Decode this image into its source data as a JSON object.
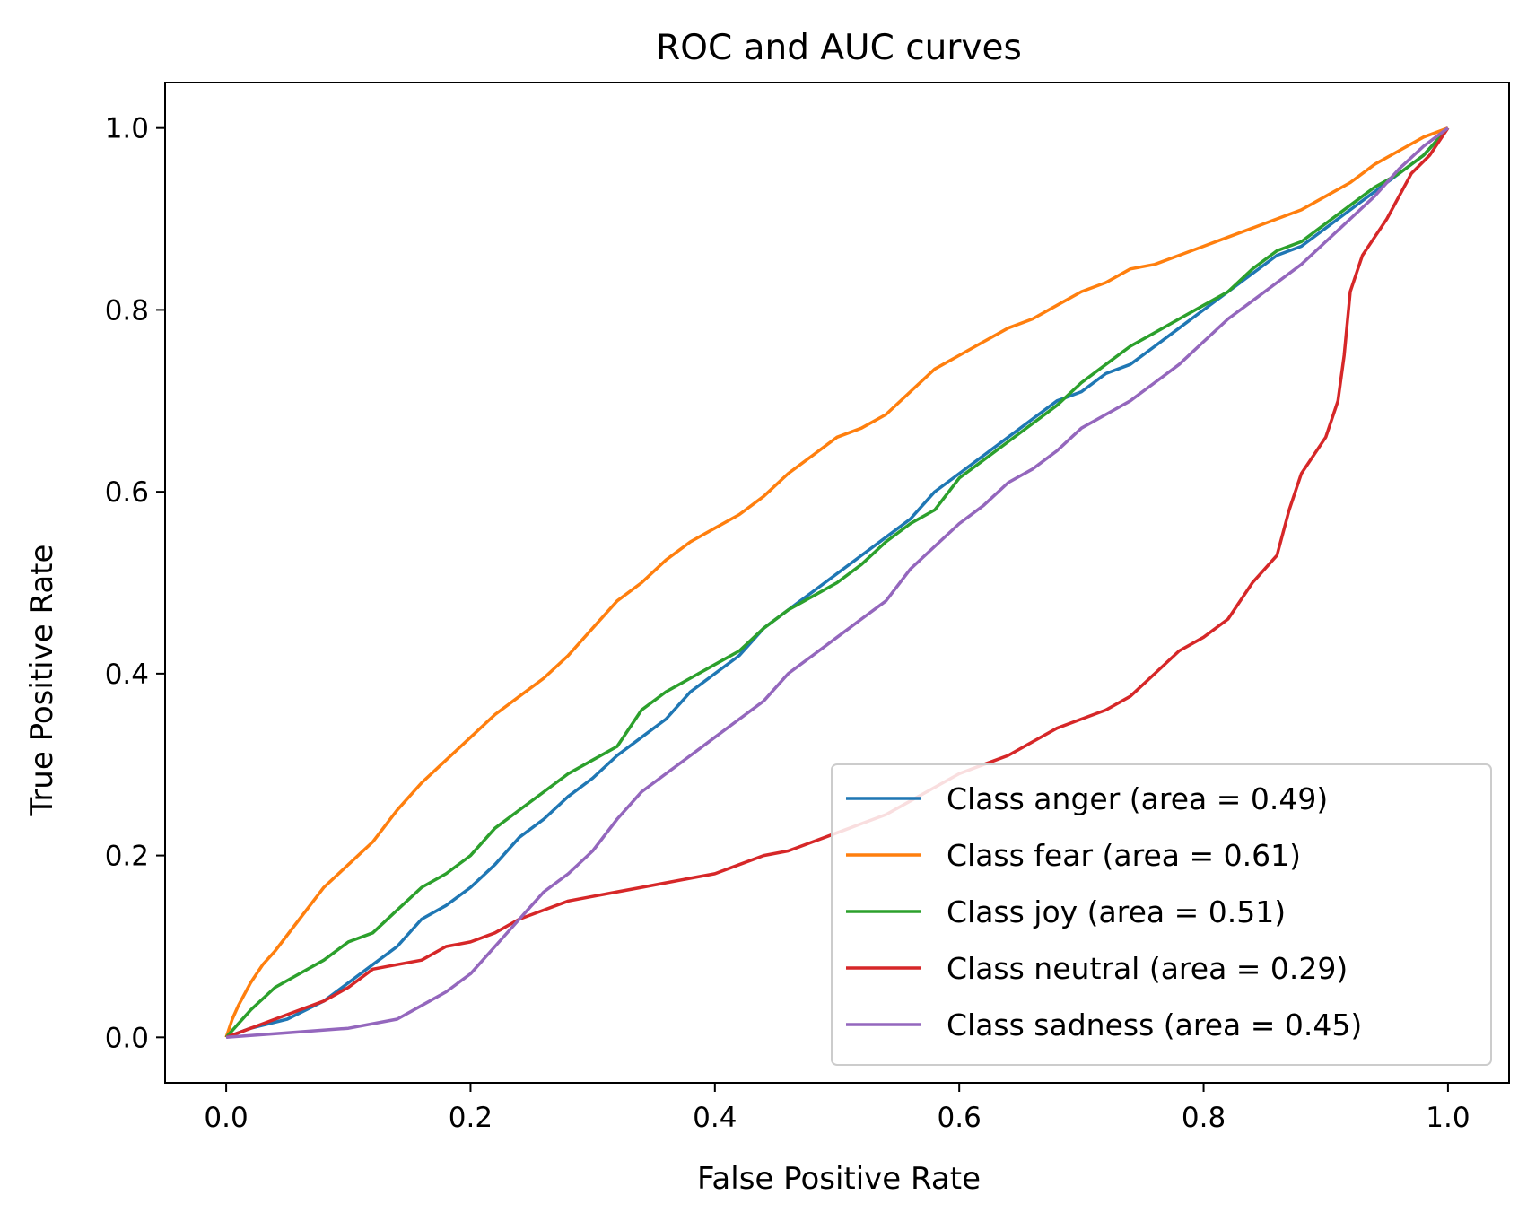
{
  "chart_data": {
    "type": "line",
    "title": "ROC and AUC curves",
    "xlabel": "False Positive Rate",
    "ylabel": "True Positive Rate",
    "xlim": [
      -0.05,
      1.05
    ],
    "ylim": [
      -0.05,
      1.05
    ],
    "x_ticks": [
      "0.0",
      "0.2",
      "0.4",
      "0.6",
      "0.8",
      "1.0"
    ],
    "y_ticks": [
      "0.0",
      "0.2",
      "0.4",
      "0.6",
      "0.8",
      "1.0"
    ],
    "grid": false,
    "legend_position": "lower-right",
    "series": [
      {
        "name": "Class anger (area = 0.49)",
        "color": "#1f77b4",
        "points": [
          [
            0,
            0
          ],
          [
            0.02,
            0.01
          ],
          [
            0.05,
            0.02
          ],
          [
            0.08,
            0.04
          ],
          [
            0.1,
            0.06
          ],
          [
            0.12,
            0.08
          ],
          [
            0.14,
            0.1
          ],
          [
            0.16,
            0.13
          ],
          [
            0.18,
            0.145
          ],
          [
            0.2,
            0.165
          ],
          [
            0.22,
            0.19
          ],
          [
            0.24,
            0.22
          ],
          [
            0.26,
            0.24
          ],
          [
            0.28,
            0.265
          ],
          [
            0.3,
            0.285
          ],
          [
            0.32,
            0.31
          ],
          [
            0.34,
            0.33
          ],
          [
            0.36,
            0.35
          ],
          [
            0.38,
            0.38
          ],
          [
            0.4,
            0.4
          ],
          [
            0.42,
            0.42
          ],
          [
            0.44,
            0.45
          ],
          [
            0.46,
            0.47
          ],
          [
            0.48,
            0.49
          ],
          [
            0.5,
            0.51
          ],
          [
            0.52,
            0.53
          ],
          [
            0.54,
            0.55
          ],
          [
            0.56,
            0.57
          ],
          [
            0.58,
            0.6
          ],
          [
            0.6,
            0.62
          ],
          [
            0.62,
            0.64
          ],
          [
            0.64,
            0.66
          ],
          [
            0.66,
            0.68
          ],
          [
            0.68,
            0.7
          ],
          [
            0.7,
            0.71
          ],
          [
            0.72,
            0.73
          ],
          [
            0.74,
            0.74
          ],
          [
            0.76,
            0.76
          ],
          [
            0.78,
            0.78
          ],
          [
            0.8,
            0.8
          ],
          [
            0.82,
            0.82
          ],
          [
            0.84,
            0.84
          ],
          [
            0.86,
            0.86
          ],
          [
            0.88,
            0.87
          ],
          [
            0.9,
            0.89
          ],
          [
            0.92,
            0.91
          ],
          [
            0.94,
            0.93
          ],
          [
            0.96,
            0.95
          ],
          [
            0.98,
            0.97
          ],
          [
            1,
            1
          ]
        ]
      },
      {
        "name": "Class fear (area = 0.61)",
        "color": "#ff7f0e",
        "points": [
          [
            0,
            0
          ],
          [
            0.005,
            0.02
          ],
          [
            0.01,
            0.035
          ],
          [
            0.02,
            0.06
          ],
          [
            0.03,
            0.08
          ],
          [
            0.04,
            0.095
          ],
          [
            0.06,
            0.13
          ],
          [
            0.08,
            0.165
          ],
          [
            0.1,
            0.19
          ],
          [
            0.12,
            0.215
          ],
          [
            0.14,
            0.25
          ],
          [
            0.16,
            0.28
          ],
          [
            0.18,
            0.305
          ],
          [
            0.2,
            0.33
          ],
          [
            0.22,
            0.355
          ],
          [
            0.24,
            0.375
          ],
          [
            0.26,
            0.395
          ],
          [
            0.28,
            0.42
          ],
          [
            0.3,
            0.45
          ],
          [
            0.32,
            0.48
          ],
          [
            0.34,
            0.5
          ],
          [
            0.36,
            0.525
          ],
          [
            0.38,
            0.545
          ],
          [
            0.4,
            0.56
          ],
          [
            0.42,
            0.575
          ],
          [
            0.44,
            0.595
          ],
          [
            0.46,
            0.62
          ],
          [
            0.48,
            0.64
          ],
          [
            0.5,
            0.66
          ],
          [
            0.52,
            0.67
          ],
          [
            0.54,
            0.685
          ],
          [
            0.56,
            0.71
          ],
          [
            0.58,
            0.735
          ],
          [
            0.6,
            0.75
          ],
          [
            0.62,
            0.765
          ],
          [
            0.64,
            0.78
          ],
          [
            0.66,
            0.79
          ],
          [
            0.68,
            0.805
          ],
          [
            0.7,
            0.82
          ],
          [
            0.72,
            0.83
          ],
          [
            0.74,
            0.845
          ],
          [
            0.76,
            0.85
          ],
          [
            0.78,
            0.86
          ],
          [
            0.8,
            0.87
          ],
          [
            0.82,
            0.88
          ],
          [
            0.84,
            0.89
          ],
          [
            0.86,
            0.9
          ],
          [
            0.88,
            0.91
          ],
          [
            0.9,
            0.925
          ],
          [
            0.92,
            0.94
          ],
          [
            0.94,
            0.96
          ],
          [
            0.96,
            0.975
          ],
          [
            0.98,
            0.99
          ],
          [
            1,
            1
          ]
        ]
      },
      {
        "name": "Class joy (area = 0.51)",
        "color": "#2ca02c",
        "points": [
          [
            0,
            0
          ],
          [
            0.01,
            0.015
          ],
          [
            0.02,
            0.03
          ],
          [
            0.04,
            0.055
          ],
          [
            0.06,
            0.07
          ],
          [
            0.08,
            0.085
          ],
          [
            0.1,
            0.105
          ],
          [
            0.12,
            0.115
          ],
          [
            0.14,
            0.14
          ],
          [
            0.16,
            0.165
          ],
          [
            0.18,
            0.18
          ],
          [
            0.2,
            0.2
          ],
          [
            0.22,
            0.23
          ],
          [
            0.24,
            0.25
          ],
          [
            0.26,
            0.27
          ],
          [
            0.28,
            0.29
          ],
          [
            0.3,
            0.305
          ],
          [
            0.32,
            0.32
          ],
          [
            0.34,
            0.36
          ],
          [
            0.36,
            0.38
          ],
          [
            0.38,
            0.395
          ],
          [
            0.4,
            0.41
          ],
          [
            0.42,
            0.425
          ],
          [
            0.44,
            0.45
          ],
          [
            0.46,
            0.47
          ],
          [
            0.48,
            0.485
          ],
          [
            0.5,
            0.5
          ],
          [
            0.52,
            0.52
          ],
          [
            0.54,
            0.545
          ],
          [
            0.56,
            0.565
          ],
          [
            0.58,
            0.58
          ],
          [
            0.6,
            0.615
          ],
          [
            0.62,
            0.635
          ],
          [
            0.64,
            0.655
          ],
          [
            0.66,
            0.675
          ],
          [
            0.68,
            0.695
          ],
          [
            0.7,
            0.72
          ],
          [
            0.72,
            0.74
          ],
          [
            0.74,
            0.76
          ],
          [
            0.76,
            0.775
          ],
          [
            0.78,
            0.79
          ],
          [
            0.8,
            0.805
          ],
          [
            0.82,
            0.82
          ],
          [
            0.84,
            0.845
          ],
          [
            0.86,
            0.865
          ],
          [
            0.88,
            0.875
          ],
          [
            0.9,
            0.895
          ],
          [
            0.92,
            0.915
          ],
          [
            0.94,
            0.935
          ],
          [
            0.96,
            0.95
          ],
          [
            0.98,
            0.97
          ],
          [
            1,
            1
          ]
        ]
      },
      {
        "name": "Class neutral (area = 0.29)",
        "color": "#d62728",
        "points": [
          [
            0,
            0
          ],
          [
            0.02,
            0.01
          ],
          [
            0.04,
            0.02
          ],
          [
            0.06,
            0.03
          ],
          [
            0.08,
            0.04
          ],
          [
            0.1,
            0.055
          ],
          [
            0.12,
            0.075
          ],
          [
            0.14,
            0.08
          ],
          [
            0.16,
            0.085
          ],
          [
            0.18,
            0.1
          ],
          [
            0.2,
            0.105
          ],
          [
            0.22,
            0.115
          ],
          [
            0.24,
            0.13
          ],
          [
            0.26,
            0.14
          ],
          [
            0.28,
            0.15
          ],
          [
            0.3,
            0.155
          ],
          [
            0.32,
            0.16
          ],
          [
            0.34,
            0.165
          ],
          [
            0.36,
            0.17
          ],
          [
            0.38,
            0.175
          ],
          [
            0.4,
            0.18
          ],
          [
            0.42,
            0.19
          ],
          [
            0.44,
            0.2
          ],
          [
            0.46,
            0.205
          ],
          [
            0.48,
            0.215
          ],
          [
            0.5,
            0.225
          ],
          [
            0.52,
            0.235
          ],
          [
            0.54,
            0.245
          ],
          [
            0.56,
            0.26
          ],
          [
            0.58,
            0.275
          ],
          [
            0.6,
            0.29
          ],
          [
            0.62,
            0.3
          ],
          [
            0.64,
            0.31
          ],
          [
            0.66,
            0.325
          ],
          [
            0.68,
            0.34
          ],
          [
            0.7,
            0.35
          ],
          [
            0.72,
            0.36
          ],
          [
            0.74,
            0.375
          ],
          [
            0.76,
            0.4
          ],
          [
            0.78,
            0.425
          ],
          [
            0.8,
            0.44
          ],
          [
            0.82,
            0.46
          ],
          [
            0.84,
            0.5
          ],
          [
            0.86,
            0.53
          ],
          [
            0.87,
            0.58
          ],
          [
            0.88,
            0.62
          ],
          [
            0.9,
            0.66
          ],
          [
            0.91,
            0.7
          ],
          [
            0.915,
            0.75
          ],
          [
            0.92,
            0.82
          ],
          [
            0.93,
            0.86
          ],
          [
            0.95,
            0.9
          ],
          [
            0.97,
            0.95
          ],
          [
            0.985,
            0.97
          ],
          [
            1,
            1
          ]
        ]
      },
      {
        "name": "Class sadness (area = 0.45)",
        "color": "#9467bd",
        "points": [
          [
            0,
            0
          ],
          [
            0.05,
            0.005
          ],
          [
            0.1,
            0.01
          ],
          [
            0.14,
            0.02
          ],
          [
            0.16,
            0.035
          ],
          [
            0.18,
            0.05
          ],
          [
            0.2,
            0.07
          ],
          [
            0.22,
            0.1
          ],
          [
            0.24,
            0.13
          ],
          [
            0.26,
            0.16
          ],
          [
            0.28,
            0.18
          ],
          [
            0.3,
            0.205
          ],
          [
            0.32,
            0.24
          ],
          [
            0.34,
            0.27
          ],
          [
            0.36,
            0.29
          ],
          [
            0.38,
            0.31
          ],
          [
            0.4,
            0.33
          ],
          [
            0.42,
            0.35
          ],
          [
            0.44,
            0.37
          ],
          [
            0.46,
            0.4
          ],
          [
            0.48,
            0.42
          ],
          [
            0.5,
            0.44
          ],
          [
            0.52,
            0.46
          ],
          [
            0.54,
            0.48
          ],
          [
            0.56,
            0.515
          ],
          [
            0.58,
            0.54
          ],
          [
            0.6,
            0.565
          ],
          [
            0.62,
            0.585
          ],
          [
            0.64,
            0.61
          ],
          [
            0.66,
            0.625
          ],
          [
            0.68,
            0.645
          ],
          [
            0.7,
            0.67
          ],
          [
            0.72,
            0.685
          ],
          [
            0.74,
            0.7
          ],
          [
            0.76,
            0.72
          ],
          [
            0.78,
            0.74
          ],
          [
            0.8,
            0.765
          ],
          [
            0.82,
            0.79
          ],
          [
            0.84,
            0.81
          ],
          [
            0.86,
            0.83
          ],
          [
            0.88,
            0.85
          ],
          [
            0.9,
            0.875
          ],
          [
            0.92,
            0.9
          ],
          [
            0.94,
            0.925
          ],
          [
            0.96,
            0.955
          ],
          [
            0.98,
            0.98
          ],
          [
            1,
            1
          ]
        ]
      }
    ]
  }
}
